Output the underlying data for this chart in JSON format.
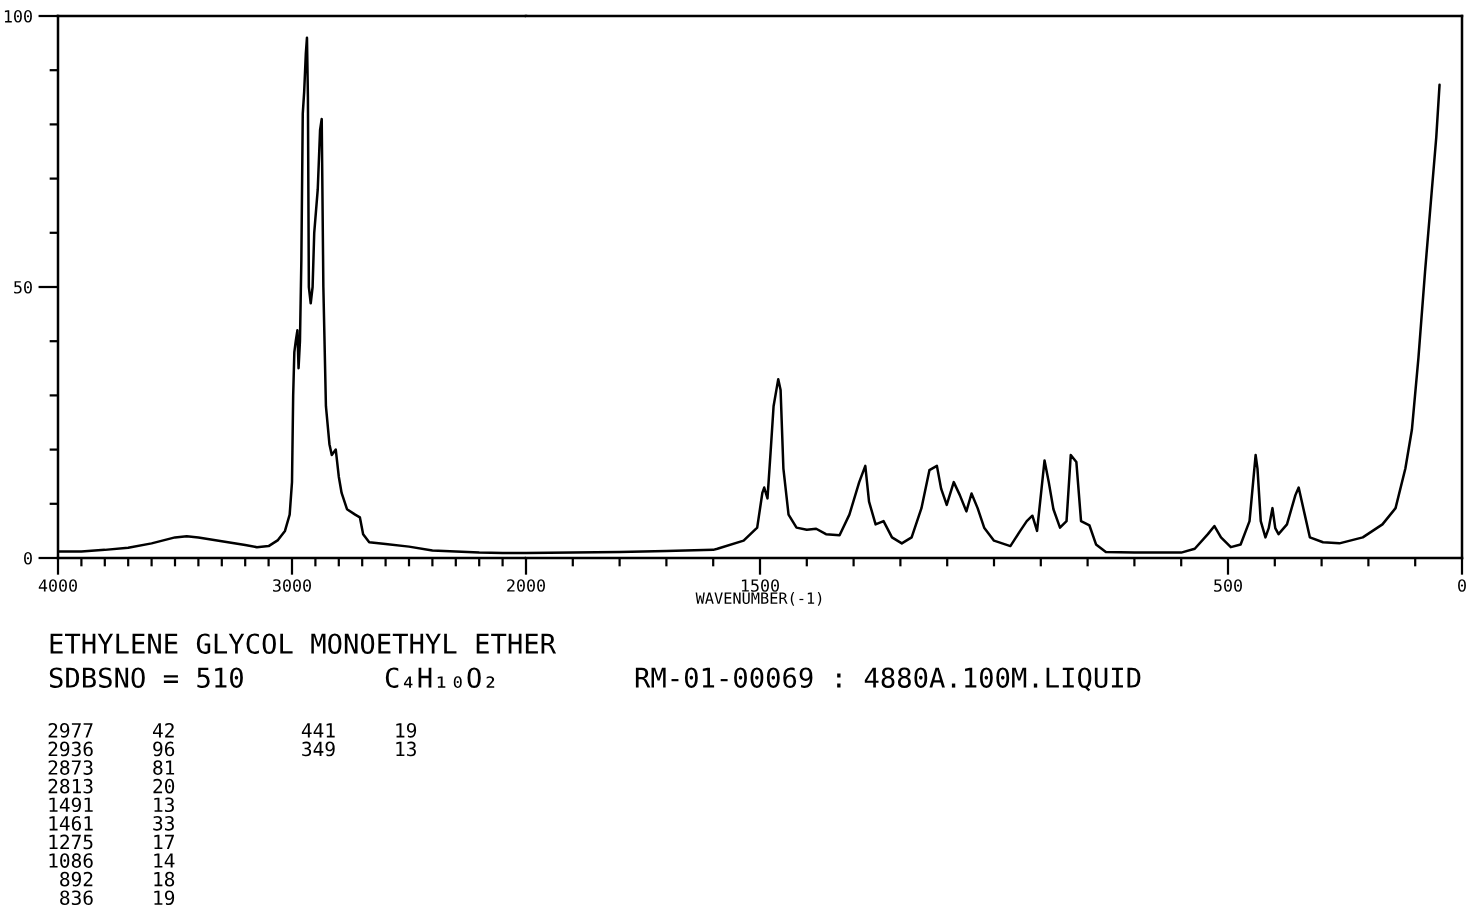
{
  "chart_data": [
    {
      "type": "line",
      "title": "ETHYLENE GLYCOL MONOETHYL ETHER",
      "subtitle": "SDBSNO = 510",
      "annotations": [
        "C₄H₁₀O₂",
        "RM-01-00069 : 4880A.100M.LIQUID",
        "2977",
        "42",
        "2936",
        "96",
        "2873",
        "81",
        "2813",
        "20",
        "1491",
        "13",
        "1461",
        "33",
        "1275",
        "17",
        "1086",
        "14",
        "892",
        "18",
        "836",
        "19",
        "441",
        "19",
        "349",
        "13"
      ],
      "x": [
        4000,
        3900,
        3800,
        3700,
        3600,
        3500,
        3450,
        3400,
        3300,
        3200,
        3150,
        3100,
        3060,
        3030,
        3010,
        3000,
        2995,
        2990,
        2984,
        2977,
        2972,
        2966,
        2960,
        2954,
        2948,
        2941,
        2936,
        2932,
        2928,
        2920,
        2912,
        2905,
        2890,
        2880,
        2873,
        2866,
        2855,
        2840,
        2830,
        2813,
        2800,
        2788,
        2765,
        2730,
        2710,
        2696,
        2670,
        2600,
        2500,
        2400,
        2300,
        2200,
        2100,
        2000
      ],
      "series": [
        {
          "color": "#000000",
          "values": [
            1.2,
            1.2,
            1.5,
            1.9,
            2.7,
            3.8,
            4.0,
            3.8,
            3.1,
            2.4,
            2.0,
            2.2,
            3.3,
            5.0,
            8.0,
            14,
            30,
            38,
            40,
            42,
            35,
            40,
            55,
            82,
            86,
            93,
            96,
            85,
            50,
            47,
            50,
            60,
            68,
            79,
            81,
            50,
            28,
            21,
            19,
            20,
            15,
            12,
            9,
            8,
            7.5,
            4.4,
            2.9,
            2.6,
            2.1,
            1.4,
            1.2,
            1.0,
            0.9,
            0.9
          ]
        }
      ],
      "xlim": [
        4000,
        2000
      ],
      "ylim": [
        0,
        100
      ],
      "xticks": [
        4000,
        {
          "value": 3900,
          "label": null
        },
        {
          "value": 3800,
          "label": null
        },
        {
          "value": 3700,
          "label": null
        },
        {
          "value": 3600,
          "label": null
        },
        {
          "value": 3500,
          "label": null
        },
        {
          "value": 3400,
          "label": null
        },
        {
          "value": 3300,
          "label": null
        },
        {
          "value": 3200,
          "label": null
        },
        {
          "value": 3100,
          "label": null
        },
        3000,
        {
          "value": 2900,
          "label": null
        },
        {
          "value": 2800,
          "label": null
        },
        {
          "value": 2700,
          "label": null
        },
        {
          "value": 2600,
          "label": null
        },
        {
          "value": 2500,
          "label": null
        },
        {
          "value": 2400,
          "label": null
        },
        {
          "value": 2300,
          "label": null
        },
        {
          "value": 2200,
          "label": null
        },
        {
          "value": 2100,
          "label": null
        },
        2000
      ],
      "yticks": [
        0,
        {
          "value": 10,
          "label": null
        },
        {
          "value": 20,
          "label": null
        },
        {
          "value": 30,
          "label": null
        },
        {
          "value": 40,
          "label": null
        },
        50,
        {
          "value": 60,
          "label": null
        },
        {
          "value": 70,
          "label": null
        },
        {
          "value": 80,
          "label": null
        },
        {
          "value": 90,
          "label": null
        },
        100
      ]
    },
    {
      "type": "line",
      "xlabel": "WAVENUMBER(-1)",
      "tick_labels": "x",
      "x": [
        2000,
        1900,
        1800,
        1700,
        1600,
        1591,
        1535,
        1506,
        1495,
        1491,
        1484,
        1477,
        1471,
        1461,
        1456,
        1450,
        1439,
        1422,
        1400,
        1380,
        1359,
        1330,
        1309,
        1288,
        1275,
        1267,
        1253,
        1236,
        1218,
        1197,
        1176,
        1155,
        1138,
        1122,
        1113,
        1101,
        1086,
        1073,
        1059,
        1048,
        1035,
        1021,
        1000,
        965,
        944,
        930,
        918,
        908,
        892,
        883,
        873,
        859,
        845,
        836,
        824,
        814,
        796,
        782,
        761,
        700,
        600,
        571,
        543,
        529,
        515,
        494,
        473,
        454,
        441,
        437,
        430,
        420,
        413,
        405,
        399,
        392,
        374,
        356,
        349,
        336,
        325,
        297,
        262,
        212,
        170,
        142,
        121,
        107,
        93,
        79,
        65,
        55,
        48
      ],
      "series": [
        {
          "color": "#000000",
          "values": [
            0.9,
            1.0,
            1.1,
            1.3,
            1.5,
            1.7,
            3.2,
            5.6,
            12,
            13,
            11,
            20,
            28,
            33,
            31,
            16.5,
            8,
            5.6,
            5.2,
            5.4,
            4.4,
            4.2,
            8,
            14,
            17,
            10.4,
            6.2,
            6.8,
            3.8,
            2.7,
            3.8,
            9.2,
            16.2,
            17,
            12.8,
            9.8,
            14,
            11.6,
            8.6,
            11.9,
            9.2,
            5.6,
            3.2,
            2.2,
            5,
            6.8,
            7.8,
            5,
            18,
            14,
            9,
            5.6,
            6.8,
            19,
            17.7,
            6.8,
            6,
            2.5,
            1.1,
            1.0,
            1.0,
            1.7,
            4.4,
            5.9,
            3.8,
            2.0,
            2.5,
            6.8,
            19,
            16.5,
            6.8,
            3.8,
            5.5,
            9.2,
            5.5,
            4.4,
            6.2,
            11.6,
            13,
            8,
            3.8,
            2.9,
            2.7,
            3.8,
            6.2,
            9.2,
            16.5,
            23.7,
            37,
            52.8,
            67.3,
            77.6,
            87.3
          ]
        }
      ],
      "xlim": [
        2000,
        0
      ],
      "ylim": [
        0,
        100
      ],
      "xticks": [
        {
          "value": 1900,
          "label": null
        },
        {
          "value": 1800,
          "label": null
        },
        {
          "value": 1700,
          "label": null
        },
        {
          "value": 1600,
          "label": null
        },
        1500,
        {
          "value": 1400,
          "label": null
        },
        {
          "value": 1300,
          "label": null
        },
        {
          "value": 1200,
          "label": null
        },
        {
          "value": 1100,
          "label": null
        },
        {
          "value": 1000,
          "label": null
        },
        {
          "value": 900,
          "label": null
        },
        {
          "value": 800,
          "label": null
        },
        {
          "value": 700,
          "label": null
        },
        {
          "value": 600,
          "label": null
        },
        500,
        {
          "value": 400,
          "label": null
        },
        {
          "value": 300,
          "label": null
        },
        {
          "value": 200,
          "label": null
        },
        {
          "value": 100,
          "label": null
        },
        0
      ]
    }
  ]
}
